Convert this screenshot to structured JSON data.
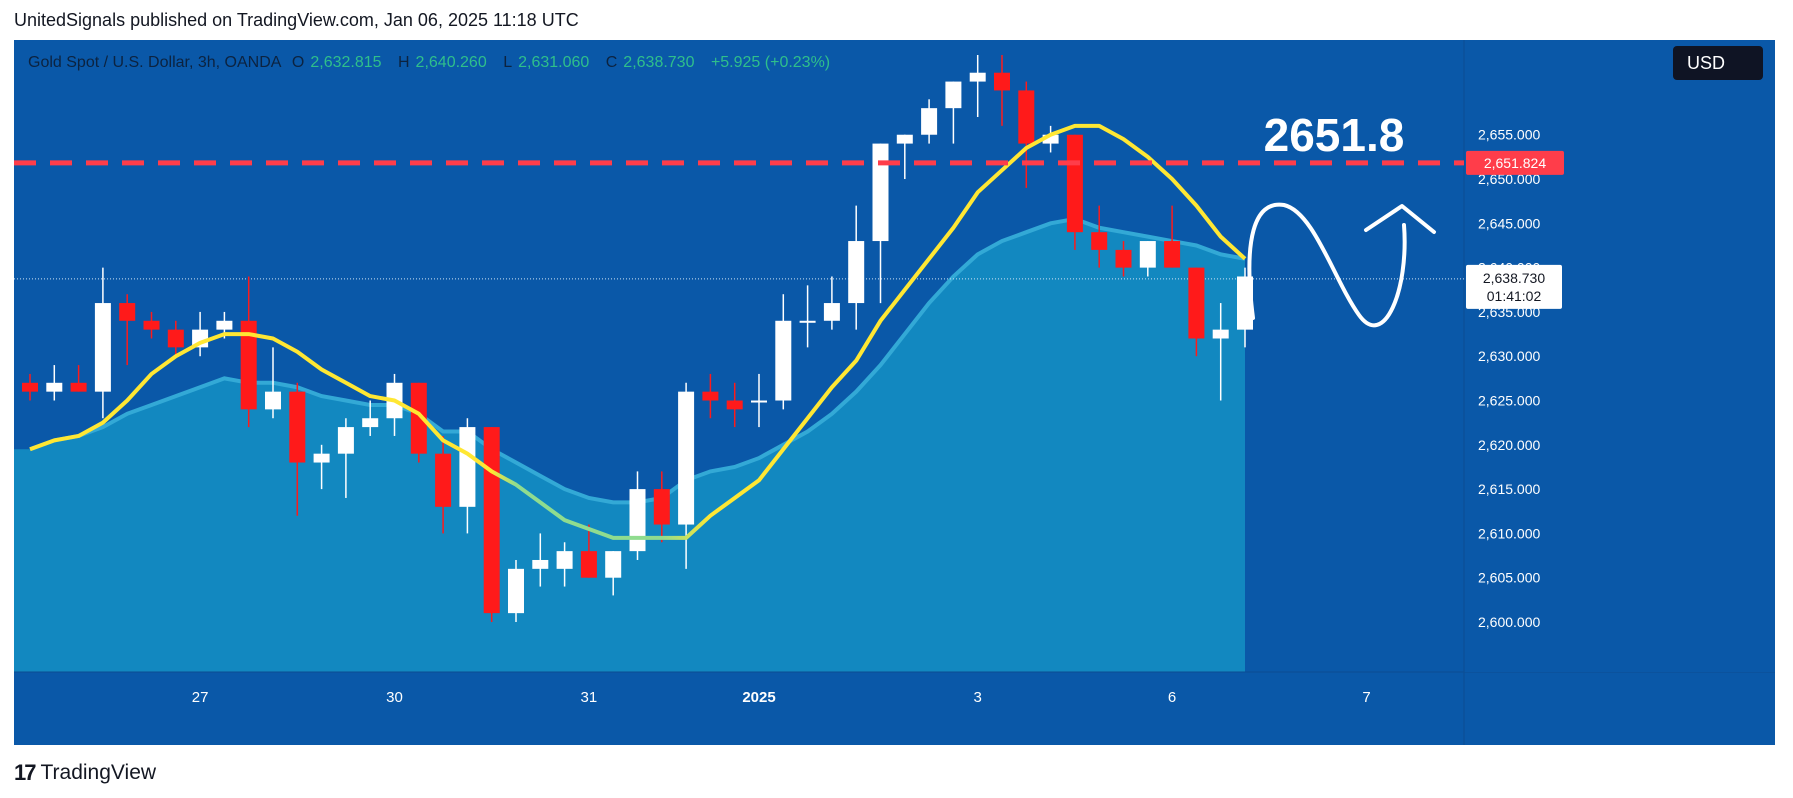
{
  "header": {
    "caption": "UnitedSignals published on TradingView.com, Jan 06, 2025 11:18 UTC"
  },
  "symbol": {
    "name": "Gold Spot / U.S. Dollar, 3h, OANDA",
    "o_label": "O",
    "o_value": "2,632.815",
    "h_label": "H",
    "h_value": "2,640.260",
    "l_label": "L",
    "l_value": "2,631.060",
    "c_label": "C",
    "c_value": "2,638.730",
    "change": "+5.925 (+0.23%)"
  },
  "currency": {
    "label": "USD"
  },
  "footer": {
    "brand": "TradingView",
    "mark": "17"
  },
  "colors": {
    "background": "#0a58a8",
    "area_fill": "#1491c4",
    "up_candle": "#ffffff",
    "down_candle": "#ff1a1a",
    "ema_fast": "#ffe733",
    "target_line": "#ff3d4a",
    "axis_label": "#ffffff"
  },
  "chart_data": {
    "type": "candlestick",
    "title": "Gold Spot / U.S. Dollar, 3h, OANDA",
    "ylim": [
      2600,
      2664
    ],
    "y_ticks": [
      "2,600.000",
      "2,605.000",
      "2,610.000",
      "2,615.000",
      "2,620.000",
      "2,625.000",
      "2,630.000",
      "2,635.000",
      "2,640.000",
      "2,645.000",
      "2,650.000",
      "2,655.000"
    ],
    "y_tick_values": [
      2600,
      2605,
      2610,
      2615,
      2620,
      2625,
      2630,
      2635,
      2640,
      2645,
      2650,
      2655
    ],
    "x_ticks": [
      "27",
      "30",
      "31",
      "2025",
      "3",
      "6",
      "7"
    ],
    "x_tick_index": [
      7,
      15,
      23,
      30,
      39,
      47,
      55
    ],
    "candles": [
      {
        "o": 2627,
        "h": 2628,
        "l": 2625,
        "c": 2626
      },
      {
        "o": 2626,
        "h": 2629,
        "l": 2625,
        "c": 2627
      },
      {
        "o": 2627,
        "h": 2629,
        "l": 2626,
        "c": 2626
      },
      {
        "o": 2626,
        "h": 2640,
        "l": 2623,
        "c": 2636
      },
      {
        "o": 2636,
        "h": 2637,
        "l": 2629,
        "c": 2634
      },
      {
        "o": 2634,
        "h": 2635,
        "l": 2632,
        "c": 2633
      },
      {
        "o": 2633,
        "h": 2634,
        "l": 2630,
        "c": 2631
      },
      {
        "o": 2631,
        "h": 2635,
        "l": 2630,
        "c": 2633
      },
      {
        "o": 2633,
        "h": 2635,
        "l": 2632,
        "c": 2634
      },
      {
        "o": 2634,
        "h": 2639,
        "l": 2622,
        "c": 2624
      },
      {
        "o": 2624,
        "h": 2631,
        "l": 2623,
        "c": 2626
      },
      {
        "o": 2626,
        "h": 2627,
        "l": 2612,
        "c": 2618
      },
      {
        "o": 2618,
        "h": 2620,
        "l": 2615,
        "c": 2619
      },
      {
        "o": 2619,
        "h": 2623,
        "l": 2614,
        "c": 2622
      },
      {
        "o": 2622,
        "h": 2625,
        "l": 2621,
        "c": 2623
      },
      {
        "o": 2623,
        "h": 2628,
        "l": 2621,
        "c": 2627
      },
      {
        "o": 2627,
        "h": 2627,
        "l": 2618,
        "c": 2619
      },
      {
        "o": 2619,
        "h": 2621,
        "l": 2610,
        "c": 2613
      },
      {
        "o": 2613,
        "h": 2623,
        "l": 2610,
        "c": 2622
      },
      {
        "o": 2622,
        "h": 2622,
        "l": 2600,
        "c": 2601
      },
      {
        "o": 2601,
        "h": 2607,
        "l": 2600,
        "c": 2606
      },
      {
        "o": 2606,
        "h": 2610,
        "l": 2604,
        "c": 2607
      },
      {
        "o": 2606,
        "h": 2609,
        "l": 2604,
        "c": 2608
      },
      {
        "o": 2608,
        "h": 2611,
        "l": 2605,
        "c": 2605
      },
      {
        "o": 2605,
        "h": 2608,
        "l": 2603,
        "c": 2608
      },
      {
        "o": 2608,
        "h": 2617,
        "l": 2607,
        "c": 2615
      },
      {
        "o": 2615,
        "h": 2617,
        "l": 2609,
        "c": 2611
      },
      {
        "o": 2611,
        "h": 2627,
        "l": 2606,
        "c": 2626
      },
      {
        "o": 2626,
        "h": 2628,
        "l": 2623,
        "c": 2625
      },
      {
        "o": 2625,
        "h": 2627,
        "l": 2622,
        "c": 2624
      },
      {
        "o": 2625,
        "h": 2628,
        "l": 2622,
        "c": 2625
      },
      {
        "o": 2625,
        "h": 2637,
        "l": 2624,
        "c": 2634
      },
      {
        "o": 2634,
        "h": 2638,
        "l": 2631,
        "c": 2634
      },
      {
        "o": 2634,
        "h": 2639,
        "l": 2633,
        "c": 2636
      },
      {
        "o": 2636,
        "h": 2647,
        "l": 2633,
        "c": 2643
      },
      {
        "o": 2643,
        "h": 2654,
        "l": 2636,
        "c": 2654
      },
      {
        "o": 2654,
        "h": 2655,
        "l": 2650,
        "c": 2655
      },
      {
        "o": 2655,
        "h": 2659,
        "l": 2654,
        "c": 2658
      },
      {
        "o": 2658,
        "h": 2661,
        "l": 2654,
        "c": 2661
      },
      {
        "o": 2661,
        "h": 2664,
        "l": 2657,
        "c": 2662
      },
      {
        "o": 2662,
        "h": 2664,
        "l": 2656,
        "c": 2660
      },
      {
        "o": 2660,
        "h": 2661,
        "l": 2649,
        "c": 2654
      },
      {
        "o": 2654,
        "h": 2656,
        "l": 2653,
        "c": 2655
      },
      {
        "o": 2655,
        "h": 2655,
        "l": 2642,
        "c": 2644
      },
      {
        "o": 2644,
        "h": 2647,
        "l": 2640,
        "c": 2642
      },
      {
        "o": 2642,
        "h": 2643,
        "l": 2639,
        "c": 2640
      },
      {
        "o": 2640,
        "h": 2643,
        "l": 2639,
        "c": 2643
      },
      {
        "o": 2643,
        "h": 2647,
        "l": 2640,
        "c": 2640
      },
      {
        "o": 2640,
        "h": 2640,
        "l": 2630,
        "c": 2632
      },
      {
        "o": 2632,
        "h": 2636,
        "l": 2625,
        "c": 2633
      },
      {
        "o": 2633,
        "h": 2640,
        "l": 2631,
        "c": 2639
      }
    ],
    "ema_fast": [
      2619.5,
      2620.5,
      2621,
      2622.5,
      2625,
      2628,
      2630,
      2631.5,
      2632.5,
      2632.5,
      2632,
      2630.5,
      2628.5,
      2627,
      2625.5,
      2625,
      2623.5,
      2620.5,
      2619,
      2617,
      2615.5,
      2613.5,
      2611.5,
      2610.5,
      2609.5,
      2609.5,
      2609.5,
      2609.5,
      2612,
      2614,
      2616,
      2619.5,
      2623,
      2626.5,
      2629.5,
      2634,
      2637.5,
      2641,
      2644.5,
      2648.5,
      2651,
      2653.5,
      2655,
      2656,
      2656,
      2654.5,
      2652.5,
      2650,
      2647,
      2643.5,
      2641
    ],
    "ema_slow": [
      2619.5,
      2620.5,
      2621,
      2622,
      2623.5,
      2624.5,
      2625.5,
      2626.5,
      2627.5,
      2627,
      2627,
      2626.5,
      2625.5,
      2625,
      2624.5,
      2624.5,
      2623.5,
      2621.5,
      2621.5,
      2619.5,
      2618,
      2616.5,
      2615,
      2614,
      2613.5,
      2613.5,
      2614,
      2616,
      2617,
      2617.5,
      2618.5,
      2620,
      2621.5,
      2623.5,
      2626,
      2629,
      2632.5,
      2636,
      2639,
      2641.5,
      2643,
      2644,
      2645,
      2645.5,
      2644.5,
      2644,
      2643.5,
      2643,
      2642.5,
      2641.5,
      2641
    ],
    "target": {
      "value": 2651.824,
      "label": "2651.8",
      "price_label": "2,651.824"
    },
    "last_price": {
      "value": 2638.73,
      "label": "2,638.730",
      "countdown": "01:41:02"
    }
  }
}
